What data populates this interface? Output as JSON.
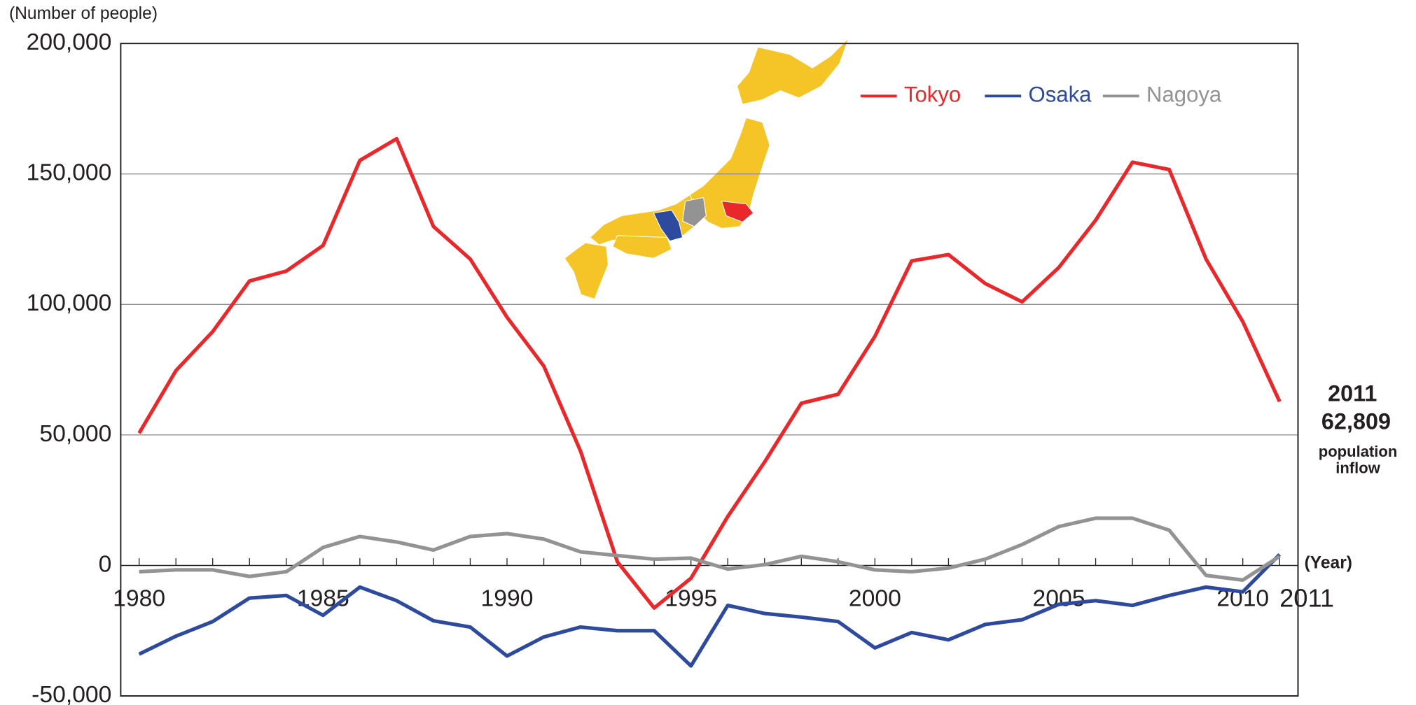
{
  "chart_data": {
    "type": "line",
    "y_axis_label": "(Number of people)",
    "x_axis_label": "(Year)",
    "x": [
      1980,
      1981,
      1982,
      1983,
      1984,
      1985,
      1986,
      1987,
      1988,
      1989,
      1990,
      1991,
      1992,
      1993,
      1994,
      1995,
      1996,
      1997,
      1998,
      1999,
      2000,
      2001,
      2002,
      2003,
      2004,
      2005,
      2006,
      2007,
      2008,
      2009,
      2010,
      2011
    ],
    "series": [
      {
        "name": "Tokyo",
        "color": "#e8282b",
        "values": [
          50700,
          74650,
          89600,
          109000,
          112800,
          122600,
          155200,
          163500,
          129900,
          117400,
          95100,
          76400,
          43750,
          1400,
          -16300,
          -4900,
          18750,
          39600,
          62150,
          65600,
          87800,
          116700,
          119100,
          108000,
          101000,
          114200,
          132300,
          154500,
          151700,
          117400,
          93400,
          62809
        ]
      },
      {
        "name": "Osaka",
        "color": "#2e4a9e",
        "values": [
          -34000,
          -27100,
          -21500,
          -12500,
          -11500,
          -19100,
          -8300,
          -13500,
          -21200,
          -23600,
          -34700,
          -27400,
          -23600,
          -25000,
          -25000,
          -38500,
          -15300,
          -18400,
          -19800,
          -21500,
          -31600,
          -25700,
          -28500,
          -22600,
          -20800,
          -14900,
          -13500,
          -15300,
          -11500,
          -8300,
          -10100,
          4200
        ]
      },
      {
        "name": "Nagoya",
        "color": "#939393",
        "values": [
          -2400,
          -1700,
          -1700,
          -4200,
          -2400,
          6900,
          11100,
          9000,
          5900,
          11100,
          12200,
          10100,
          5200,
          3800,
          2400,
          2800,
          -1400,
          300,
          3500,
          1400,
          -1700,
          -2400,
          -1000,
          2400,
          8000,
          14900,
          18100,
          18100,
          13500,
          -3800,
          -5600,
          3500
        ]
      }
    ],
    "xlim": [
      1979.5,
      2011.5
    ],
    "xticks": [
      1980,
      1985,
      1990,
      1995,
      2000,
      2005,
      2010,
      2011
    ],
    "ylim": [
      -50000,
      200000
    ],
    "yticks": [
      {
        "value": -50000,
        "label": "-50,000"
      },
      0,
      {
        "value": 50000,
        "label": "50,000"
      },
      {
        "value": 100000,
        "label": "100,000"
      },
      {
        "value": 150000,
        "label": "150,000"
      },
      {
        "value": 200000,
        "label": "200,000"
      }
    ],
    "grid": true,
    "legend": "top-right",
    "annotation": {
      "year": "2011",
      "value_label": "62,809",
      "text": "population inflow"
    }
  }
}
